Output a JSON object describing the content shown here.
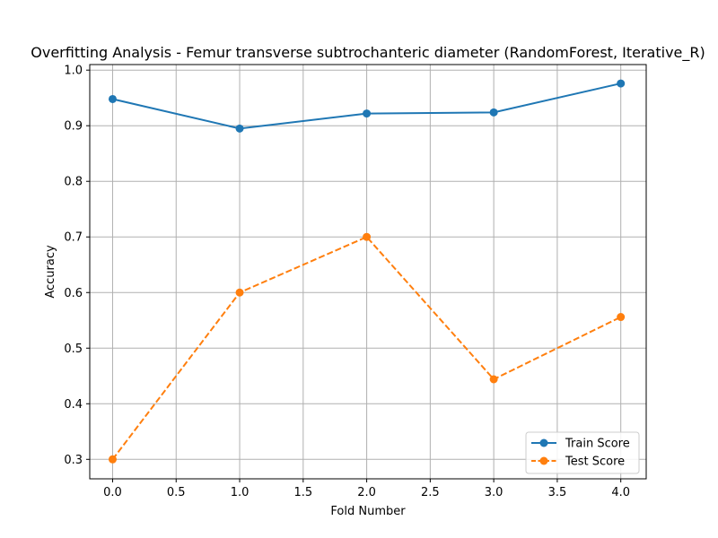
{
  "chart_data": {
    "type": "line",
    "title": "Overfitting Analysis - Femur transverse subtrochanteric diameter (RandomForest, Iterative_R)",
    "xlabel": "Fold Number",
    "ylabel": "Accuracy",
    "xlim": [
      -0.18,
      4.2
    ],
    "ylim": [
      0.265,
      1.01
    ],
    "x_ticks": [
      0.0,
      0.5,
      1.0,
      1.5,
      2.0,
      2.5,
      3.0,
      3.5,
      4.0
    ],
    "x_tick_labels": [
      "0.0",
      "0.5",
      "1.0",
      "1.5",
      "2.0",
      "2.5",
      "3.0",
      "3.5",
      "4.0"
    ],
    "y_ticks": [
      0.3,
      0.4,
      0.5,
      0.6,
      0.7,
      0.8,
      0.9,
      1.0
    ],
    "y_tick_labels": [
      "0.3",
      "0.4",
      "0.5",
      "0.6",
      "0.7",
      "0.8",
      "0.9",
      "1.0"
    ],
    "grid": true,
    "legend_position": "bottom-right",
    "x": [
      0,
      1,
      2,
      3,
      4
    ],
    "series": [
      {
        "name": "Train Score",
        "values": [
          0.948,
          0.895,
          0.922,
          0.924,
          0.976
        ],
        "color": "#1f77b4",
        "linestyle": "solid",
        "marker": "circle"
      },
      {
        "name": "Test Score",
        "values": [
          0.3,
          0.6,
          0.7,
          0.444,
          0.556
        ],
        "color": "#ff7f0e",
        "linestyle": "dashed",
        "marker": "circle"
      }
    ]
  }
}
